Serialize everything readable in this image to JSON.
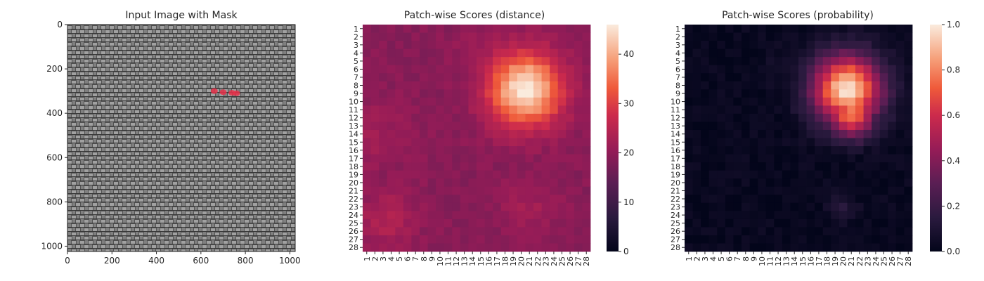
{
  "chart_data": [
    {
      "type": "image",
      "title": "Input Image with Mask",
      "xlabel": "",
      "ylabel": "",
      "x_ticks": [
        "0",
        "200",
        "400",
        "600",
        "800",
        "1000"
      ],
      "y_ticks": [
        "0",
        "200",
        "400",
        "600",
        "800",
        "1000"
      ],
      "xlim": [
        0,
        1024
      ],
      "ylim": [
        1024,
        0
      ],
      "image_description": "grey woven fabric texture",
      "mask_marks": [
        {
          "x": 660,
          "y": 300
        },
        {
          "x": 700,
          "y": 305
        },
        {
          "x": 740,
          "y": 308
        },
        {
          "x": 760,
          "y": 310
        }
      ],
      "mask_color": "#e8314a"
    },
    {
      "type": "heatmap",
      "title": "Patch-wise Scores (distance)",
      "xlabel": "",
      "ylabel": "",
      "x_ticks": [
        "1",
        "2",
        "3",
        "4",
        "5",
        "6",
        "7",
        "8",
        "9",
        "10",
        "11",
        "12",
        "13",
        "14",
        "15",
        "16",
        "17",
        "18",
        "19",
        "20",
        "21",
        "22",
        "23",
        "24",
        "25",
        "26",
        "27",
        "28"
      ],
      "y_ticks": [
        "1",
        "2",
        "3",
        "4",
        "5",
        "6",
        "7",
        "8",
        "9",
        "10",
        "11",
        "12",
        "13",
        "14",
        "15",
        "16",
        "17",
        "18",
        "19",
        "20",
        "21",
        "22",
        "23",
        "24",
        "25",
        "26",
        "27",
        "28"
      ],
      "colorbar": {
        "min": 0,
        "max": 46,
        "ticks": [
          "0",
          "10",
          "20",
          "30",
          "40"
        ]
      },
      "colormap": "rocket",
      "base_value": 19,
      "regions": [
        {
          "row": 8.5,
          "col": 20.5,
          "value": 46,
          "radius": 3.2
        },
        {
          "row": 11,
          "col": 21,
          "value": 34,
          "radius": 2.2
        },
        {
          "row": 24.5,
          "col": 3.5,
          "value": 24,
          "radius": 2.5
        },
        {
          "row": 5,
          "col": 17,
          "value": 23,
          "radius": 3
        },
        {
          "row": 23,
          "col": 21,
          "value": 22,
          "radius": 2.5
        },
        {
          "row": 14,
          "col": 2,
          "value": 22,
          "radius": 3
        }
      ]
    },
    {
      "type": "heatmap",
      "title": "Patch-wise Scores (probability)",
      "xlabel": "",
      "ylabel": "",
      "x_ticks": [
        "1",
        "2",
        "3",
        "4",
        "5",
        "6",
        "7",
        "8",
        "9",
        "10",
        "11",
        "12",
        "13",
        "14",
        "15",
        "16",
        "17",
        "18",
        "19",
        "20",
        "21",
        "22",
        "23",
        "24",
        "25",
        "26",
        "27",
        "28"
      ],
      "y_ticks": [
        "1",
        "2",
        "3",
        "4",
        "5",
        "6",
        "7",
        "8",
        "9",
        "10",
        "11",
        "12",
        "13",
        "14",
        "15",
        "16",
        "17",
        "18",
        "19",
        "20",
        "21",
        "22",
        "23",
        "24",
        "25",
        "26",
        "27",
        "28"
      ],
      "colorbar": {
        "min": 0,
        "max": 1,
        "ticks": [
          "0.0",
          "0.2",
          "0.4",
          "0.6",
          "0.8",
          "1.0"
        ]
      },
      "colormap": "rocket",
      "base_value": 0.02,
      "regions": [
        {
          "row": 8.5,
          "col": 20.5,
          "value": 0.98,
          "radius": 3.0
        },
        {
          "row": 11.5,
          "col": 21,
          "value": 0.8,
          "radius": 2.0
        },
        {
          "row": 14,
          "col": 22,
          "value": 0.35,
          "radius": 1.0
        },
        {
          "row": 23,
          "col": 20,
          "value": 0.12,
          "radius": 1.2
        },
        {
          "row": 6,
          "col": 13,
          "value": 0.08,
          "radius": 1.5
        }
      ]
    }
  ]
}
